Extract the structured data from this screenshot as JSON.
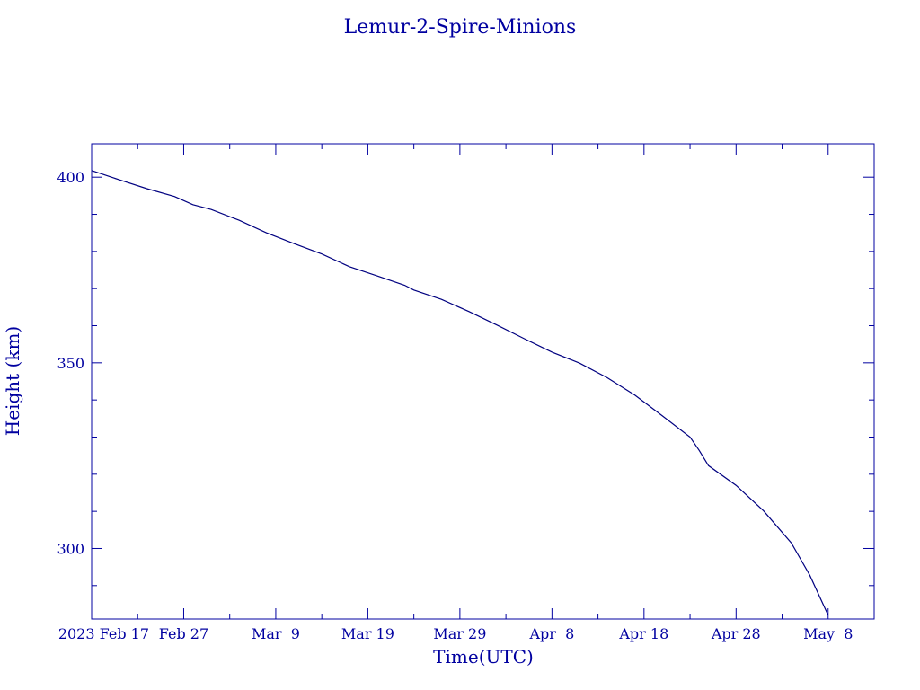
{
  "chart_data": {
    "type": "line",
    "title": "Lemur-2-Spire-Minions",
    "xlabel": "Time(UTC)",
    "ylabel": "Height (km)",
    "xlim": [
      "2023-02-17",
      "2023-05-13"
    ],
    "ylim": [
      281,
      409
    ],
    "x_tick_labels": [
      "2023 Feb 17",
      "Feb 27",
      "Mar  9",
      "Mar 19",
      "Mar 29",
      "Apr  8",
      "Apr 18",
      "Apr 28",
      "May  8"
    ],
    "x_ticks": [
      "2023-02-17",
      "2023-02-27",
      "2023-03-09",
      "2023-03-19",
      "2023-03-29",
      "2023-04-08",
      "2023-04-18",
      "2023-04-28",
      "2023-05-08"
    ],
    "y_ticks": [
      300,
      350,
      400
    ],
    "y_tick_labels": [
      "300",
      "350",
      "400"
    ],
    "y_minor_ticks": [
      290,
      310,
      320,
      330,
      340,
      360,
      370,
      380,
      390
    ],
    "x_minor_ticks": [
      "2023-02-22",
      "2023-03-04",
      "2023-03-14",
      "2023-03-24",
      "2023-04-03",
      "2023-04-13",
      "2023-04-23",
      "2023-05-03"
    ],
    "grid": false,
    "colors": {
      "axis": "#0000a0",
      "line": "#000080"
    },
    "series": [
      {
        "x": [
          "2023-02-17",
          "2023-02-20",
          "2023-02-23",
          "2023-02-26",
          "2023-02-28",
          "2023-03-02",
          "2023-03-05",
          "2023-03-08",
          "2023-03-11",
          "2023-03-14",
          "2023-03-17",
          "2023-03-20",
          "2023-03-23",
          "2023-03-24",
          "2023-03-27",
          "2023-03-30",
          "2023-04-02",
          "2023-04-05",
          "2023-04-08",
          "2023-04-11",
          "2023-04-14",
          "2023-04-17",
          "2023-04-20",
          "2023-04-23",
          "2023-04-24",
          "2023-04-25",
          "2023-04-28",
          "2023-05-01",
          "2023-05-04",
          "2023-05-06",
          "2023-05-08"
        ],
        "y": [
          401.8,
          399.3,
          396.9,
          394.8,
          392.6,
          391.3,
          388.4,
          385.0,
          382.1,
          379.3,
          375.9,
          373.4,
          370.9,
          369.6,
          367.1,
          363.8,
          360.2,
          356.5,
          352.9,
          349.9,
          346.0,
          341.3,
          335.7,
          330.0,
          326.4,
          322.3,
          317.0,
          310.1,
          301.5,
          292.8,
          282.0
        ]
      }
    ]
  }
}
